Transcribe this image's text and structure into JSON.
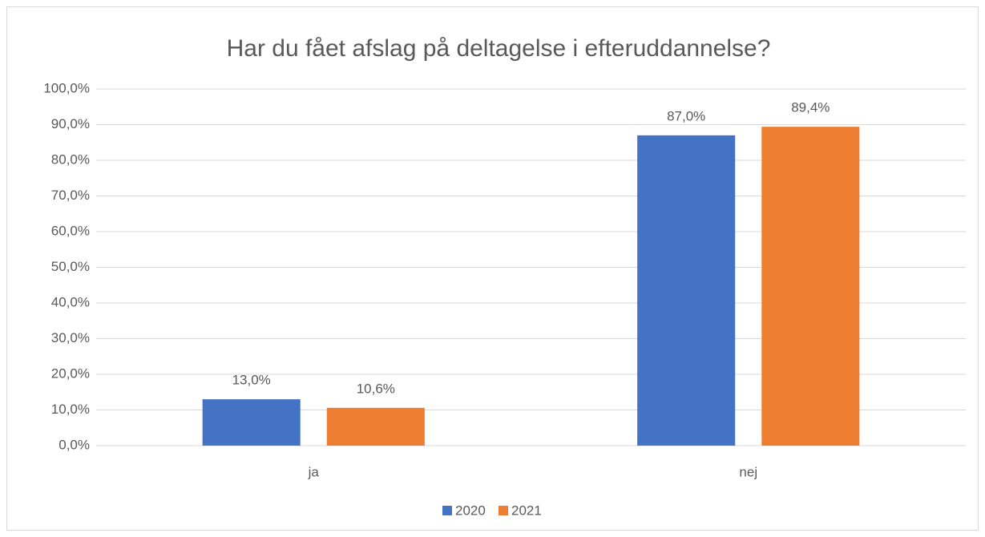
{
  "chart_data": {
    "type": "bar",
    "title": "Har du fået afslag på deltagelse i efteruddannelse?",
    "categories": [
      "ja",
      "nej"
    ],
    "series": [
      {
        "name": "2020",
        "color": "#4472c4",
        "values": [
          13.0,
          87.0
        ],
        "value_labels": [
          "13,0%",
          "87,0%"
        ]
      },
      {
        "name": "2021",
        "color": "#ed7d31",
        "values": [
          10.6,
          89.4
        ],
        "value_labels": [
          "10,6%",
          "89,4%"
        ]
      }
    ],
    "ylim": [
      0,
      100
    ],
    "yticks": [
      {
        "value": 0,
        "label": "0,0%"
      },
      {
        "value": 10,
        "label": "10,0%"
      },
      {
        "value": 20,
        "label": "20,0%"
      },
      {
        "value": 30,
        "label": "30,0%"
      },
      {
        "value": 40,
        "label": "40,0%"
      },
      {
        "value": 50,
        "label": "50,0%"
      },
      {
        "value": 60,
        "label": "60,0%"
      },
      {
        "value": 70,
        "label": "70,0%"
      },
      {
        "value": 80,
        "label": "80,0%"
      },
      {
        "value": 90,
        "label": "90,0%"
      },
      {
        "value": 100,
        "label": "100,0%"
      }
    ],
    "grid": true,
    "legend": "bottom"
  }
}
